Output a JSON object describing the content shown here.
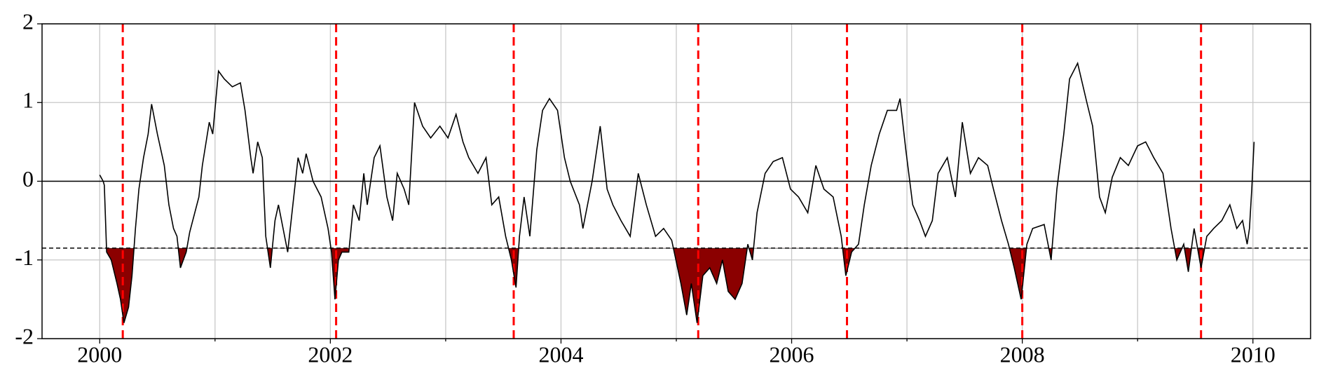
{
  "chart_data": {
    "type": "line",
    "x": [
      2000.0,
      2000.03,
      2000.04,
      2000.06,
      2000.1,
      2000.15,
      2000.18,
      2000.21,
      2000.25,
      2000.28,
      2000.31,
      2000.34,
      2000.38,
      2000.42,
      2000.45,
      2000.5,
      2000.56,
      2000.6,
      2000.64,
      2000.67,
      2000.7,
      2000.75,
      2000.78,
      2000.86,
      2000.89,
      2000.95,
      2000.98,
      2001.03,
      2001.08,
      2001.15,
      2001.22,
      2001.26,
      2001.31,
      2001.33,
      2001.37,
      2001.41,
      2001.44,
      2001.48,
      2001.52,
      2001.55,
      2001.59,
      2001.63,
      2001.66,
      2001.72,
      2001.76,
      2001.79,
      2001.85,
      2001.92,
      2001.98,
      2002.01,
      2002.04,
      2002.07,
      2002.1,
      2002.16,
      2002.2,
      2002.25,
      2002.29,
      2002.32,
      2002.38,
      2002.43,
      2002.49,
      2002.54,
      2002.58,
      2002.64,
      2002.68,
      2002.73,
      2002.8,
      2002.87,
      2002.95,
      2003.02,
      2003.09,
      2003.15,
      2003.2,
      2003.28,
      2003.35,
      2003.4,
      2003.46,
      2003.52,
      2003.57,
      2003.61,
      2003.64,
      2003.68,
      2003.73,
      2003.79,
      2003.84,
      2003.9,
      2003.97,
      2004.03,
      2004.08,
      2004.16,
      2004.19,
      2004.27,
      2004.34,
      2004.4,
      2004.45,
      2004.52,
      2004.6,
      2004.67,
      2004.74,
      2004.82,
      2004.89,
      2004.96,
      2005.04,
      2005.09,
      2005.13,
      2005.18,
      2005.23,
      2005.29,
      2005.35,
      2005.4,
      2005.45,
      2005.51,
      2005.57,
      2005.62,
      2005.66,
      2005.7,
      2005.77,
      2005.84,
      2005.92,
      2005.99,
      2006.06,
      2006.14,
      2006.21,
      2006.28,
      2006.36,
      2006.43,
      2006.47,
      2006.52,
      2006.58,
      2006.63,
      2006.69,
      2006.76,
      2006.83,
      2006.91,
      2006.94,
      2006.99,
      2007.05,
      2007.11,
      2007.16,
      2007.22,
      2007.27,
      2007.35,
      2007.42,
      2007.48,
      2007.55,
      2007.62,
      2007.7,
      2007.75,
      2007.82,
      2007.88,
      2007.93,
      2007.99,
      2008.04,
      2008.09,
      2008.19,
      2008.25,
      2008.3,
      2008.36,
      2008.41,
      2008.48,
      2008.56,
      2008.61,
      2008.67,
      2008.72,
      2008.78,
      2008.85,
      2008.92,
      2009.0,
      2009.07,
      2009.14,
      2009.22,
      2009.29,
      2009.34,
      2009.4,
      2009.44,
      2009.49,
      2009.55,
      2009.6,
      2009.66,
      2009.73,
      2009.8,
      2009.86,
      2009.91,
      2009.95,
      2009.97,
      2009.99,
      2010.01
    ],
    "values": [
      0.08,
      0.0,
      -0.05,
      -0.9,
      -1.0,
      -1.3,
      -1.5,
      -1.8,
      -1.6,
      -1.2,
      -0.6,
      -0.1,
      0.3,
      0.6,
      0.98,
      0.6,
      0.2,
      -0.3,
      -0.6,
      -0.7,
      -1.1,
      -0.9,
      -0.65,
      -0.2,
      0.2,
      0.75,
      0.6,
      1.4,
      1.3,
      1.2,
      1.25,
      0.9,
      0.3,
      0.1,
      0.5,
      0.3,
      -0.7,
      -1.1,
      -0.5,
      -0.3,
      -0.6,
      -0.9,
      -0.5,
      0.3,
      0.1,
      0.35,
      0.0,
      -0.2,
      -0.6,
      -0.9,
      -1.5,
      -1.0,
      -0.9,
      -0.9,
      -0.3,
      -0.5,
      0.1,
      -0.3,
      0.3,
      0.45,
      -0.2,
      -0.5,
      0.1,
      -0.1,
      -0.3,
      1.0,
      0.7,
      0.55,
      0.7,
      0.55,
      0.85,
      0.5,
      0.3,
      0.1,
      0.3,
      -0.3,
      -0.2,
      -0.7,
      -1.0,
      -1.35,
      -0.7,
      -0.2,
      -0.7,
      0.4,
      0.9,
      1.05,
      0.9,
      0.3,
      0.0,
      -0.3,
      -0.6,
      0.0,
      0.7,
      -0.1,
      -0.3,
      -0.5,
      -0.7,
      0.1,
      -0.3,
      -0.7,
      -0.6,
      -0.75,
      -1.3,
      -1.7,
      -1.3,
      -1.8,
      -1.2,
      -1.1,
      -1.3,
      -1.0,
      -1.4,
      -1.5,
      -1.3,
      -0.8,
      -1.0,
      -0.4,
      0.1,
      0.25,
      0.3,
      -0.1,
      -0.2,
      -0.4,
      0.2,
      -0.1,
      -0.2,
      -0.7,
      -1.2,
      -0.9,
      -0.8,
      -0.3,
      0.2,
      0.6,
      0.9,
      0.9,
      1.05,
      0.4,
      -0.3,
      -0.5,
      -0.7,
      -0.5,
      0.1,
      0.3,
      -0.2,
      0.75,
      0.1,
      0.3,
      0.2,
      -0.1,
      -0.5,
      -0.8,
      -1.1,
      -1.5,
      -0.8,
      -0.6,
      -0.55,
      -1.0,
      -0.1,
      0.6,
      1.3,
      1.5,
      1.0,
      0.7,
      -0.2,
      -0.4,
      0.05,
      0.3,
      0.2,
      0.45,
      0.5,
      0.3,
      0.1,
      -0.6,
      -1.0,
      -0.8,
      -1.15,
      -0.6,
      -1.1,
      -0.7,
      -0.6,
      -0.5,
      -0.3,
      -0.6,
      -0.5,
      -0.8,
      -0.6,
      -0.1,
      0.5
    ],
    "color": "#000000",
    "fill_color": "#8b0000",
    "event_color": "#ff0000",
    "threshold": -0.85,
    "events": [
      2000.2,
      2002.05,
      2003.59,
      2005.19,
      2006.48,
      2008.0,
      2009.55
    ],
    "xlim": [
      1999.5,
      2010.5
    ],
    "xticks": [
      2000,
      2002,
      2004,
      2006,
      2008,
      2010
    ],
    "xminorticks": [
      2001,
      2003,
      2005,
      2007,
      2009
    ],
    "ylim": [
      -2,
      2
    ],
    "yticks": [
      -2,
      -1,
      0,
      1,
      2
    ],
    "grid": true
  }
}
